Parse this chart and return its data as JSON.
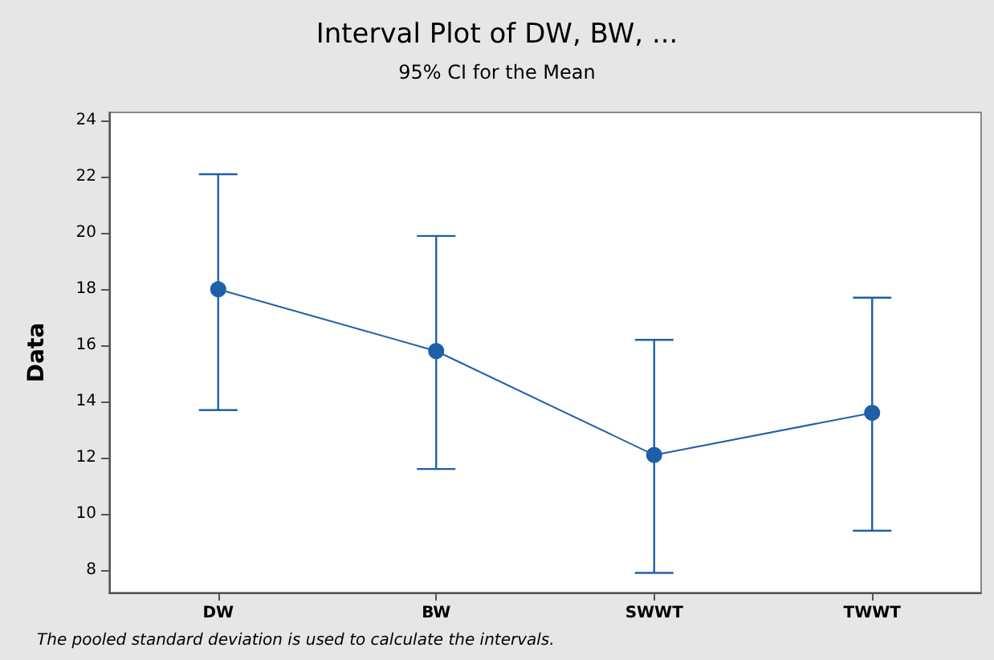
{
  "chart_data": {
    "type": "line",
    "title": "Interval Plot of DW, BW, ...",
    "subtitle": "95% CI for the Mean",
    "ylabel": "Data",
    "categories": [
      "DW",
      "BW",
      "SWWT",
      "TWWT"
    ],
    "series": [
      {
        "color": "#1f5fa8",
        "values": [
          18.0,
          15.8,
          12.1,
          13.6
        ],
        "errors": [
          [
            13.7,
            22.1
          ],
          [
            11.6,
            19.9
          ],
          [
            7.9,
            16.2
          ],
          [
            9.4,
            17.7
          ]
        ]
      }
    ],
    "ylim": [
      7.2,
      24.3
    ],
    "yticks": [
      8,
      10,
      12,
      14,
      16,
      18,
      20,
      22,
      24
    ],
    "marker": "circle",
    "line_style": "solid",
    "grid": false,
    "annotations": [
      "The pooled standard deviation is used to calculate the intervals."
    ]
  }
}
